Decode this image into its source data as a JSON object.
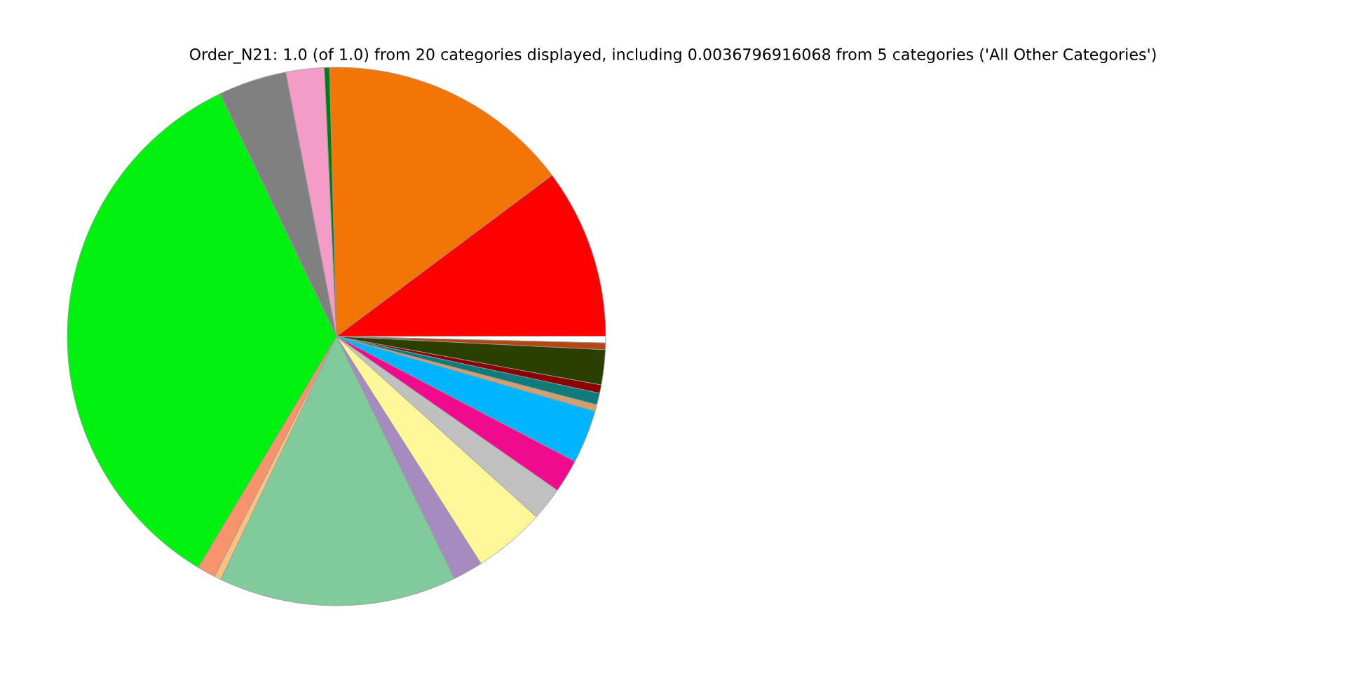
{
  "chart_data": {
    "type": "pie",
    "title": "Order_N21: 1.0 (of 1.0) from 20 categories displayed, including 0.0036796916068 from 5 categories ('All Other Categories')",
    "categories": [
      null,
      null,
      null,
      null,
      null,
      null,
      null,
      null,
      null,
      null,
      null,
      null,
      null,
      null,
      null,
      null,
      null,
      null,
      null,
      null
    ],
    "values": [
      15.2,
      10.2,
      0.4,
      0.4,
      2.1,
      0.5,
      0.7,
      0.4,
      3.2,
      2.0,
      2.0,
      4.3,
      1.8,
      14.3,
      0.4,
      1.1,
      34.3,
      4.1,
      2.3,
      0.3
    ],
    "colors": [
      "#f37505",
      "#ff0000",
      "#ffffff",
      "#b5460f",
      "#2b3f00",
      "#8b0000",
      "#0f7b7b",
      "#d2a06e",
      "#00b4ff",
      "#ef0a8e",
      "#c0c0c0",
      "#fff799",
      "#a58bc0",
      "#80ca9b",
      "#ffc080",
      "#f7946e",
      "#00f010",
      "#808080",
      "#f49cc8",
      "#007a12"
    ]
  }
}
